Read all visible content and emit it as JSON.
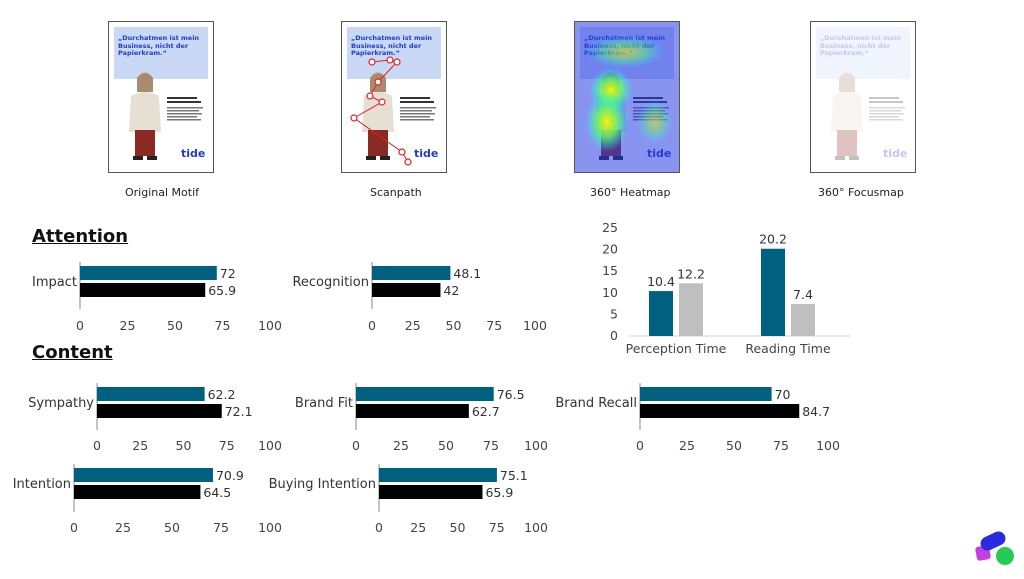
{
  "thumbnails": [
    {
      "caption": "Original Motif",
      "variant": "original"
    },
    {
      "caption": "Scanpath",
      "variant": "scanpath"
    },
    {
      "caption": "360° Heatmap",
      "variant": "heatmap"
    },
    {
      "caption": "360° Focusmap",
      "variant": "focusmap"
    }
  ],
  "poster": {
    "headline": "„Durchatmen ist mein Business, nicht der Papierkram.“",
    "logo": "tide"
  },
  "sections": {
    "attention": "Attention",
    "content": "Content"
  },
  "colors": {
    "primary": "#006080",
    "secondary": "#000000",
    "gray": "#bfbfbf",
    "axis": "#888888"
  },
  "chart_data": [
    {
      "type": "bar",
      "orientation": "horizontal",
      "category": "Impact",
      "values": [
        72,
        65.9
      ],
      "xlim": [
        0,
        100
      ],
      "ticks": [
        0,
        25,
        50,
        75,
        100
      ]
    },
    {
      "type": "bar",
      "orientation": "horizontal",
      "category": "Recognition",
      "values": [
        48.1,
        42
      ],
      "xlim": [
        0,
        100
      ],
      "ticks": [
        0,
        25,
        50,
        75,
        100
      ]
    },
    {
      "type": "bar",
      "orientation": "vertical",
      "categories": [
        "Perception Time",
        "Reading Time"
      ],
      "series": [
        {
          "name": "primary",
          "values": [
            10.4,
            20.2
          ]
        },
        {
          "name": "secondary",
          "values": [
            12.2,
            7.4
          ]
        }
      ],
      "ylim": [
        0,
        25
      ],
      "ticks": [
        0,
        5,
        10,
        15,
        20,
        25
      ]
    },
    {
      "type": "bar",
      "orientation": "horizontal",
      "category": "Sympathy",
      "values": [
        62.2,
        72.1
      ],
      "xlim": [
        0,
        100
      ],
      "ticks": [
        0,
        25,
        50,
        75,
        100
      ]
    },
    {
      "type": "bar",
      "orientation": "horizontal",
      "category": "Brand Fit",
      "values": [
        76.5,
        62.7
      ],
      "xlim": [
        0,
        100
      ],
      "ticks": [
        0,
        25,
        50,
        75,
        100
      ]
    },
    {
      "type": "bar",
      "orientation": "horizontal",
      "category": "Brand Recall",
      "values": [
        70,
        84.7
      ],
      "xlim": [
        0,
        100
      ],
      "ticks": [
        0,
        25,
        50,
        75,
        100
      ]
    },
    {
      "type": "bar",
      "orientation": "horizontal",
      "category": "Intention",
      "values": [
        70.9,
        64.5
      ],
      "xlim": [
        0,
        100
      ],
      "ticks": [
        0,
        25,
        50,
        75,
        100
      ]
    },
    {
      "type": "bar",
      "orientation": "horizontal",
      "category": "Buying Intention",
      "values": [
        75.1,
        65.9
      ],
      "xlim": [
        0,
        100
      ],
      "ticks": [
        0,
        25,
        50,
        75,
        100
      ]
    }
  ]
}
